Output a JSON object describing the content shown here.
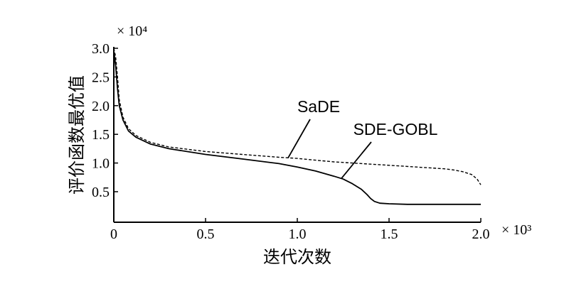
{
  "chart_data": {
    "type": "line",
    "xlabel": "迭代次数",
    "ylabel": "评价函数最优值",
    "x_multiplier": "× 10³",
    "y_multiplier": "× 10⁴",
    "xlim": [
      0,
      2.0
    ],
    "ylim": [
      0.15,
      3.0
    ],
    "x_ticks": [
      "0",
      "0.5",
      "1.0",
      "1.5",
      "2.0"
    ],
    "x_tick_values": [
      0,
      0.5,
      1.0,
      1.5,
      2.0
    ],
    "y_ticks": [
      "0.5",
      "1.0",
      "1.5",
      "2.0",
      "2.5",
      "3.0"
    ],
    "y_tick_values": [
      0.5,
      1.0,
      1.5,
      2.0,
      2.5,
      3.0
    ],
    "grid": false,
    "series": [
      {
        "name": "SaDE",
        "style": "dashed",
        "x": [
          0,
          0.01,
          0.02,
          0.03,
          0.05,
          0.08,
          0.12,
          0.2,
          0.3,
          0.5,
          0.7,
          0.9,
          1.0,
          1.1,
          1.2,
          1.3,
          1.4,
          1.5,
          1.6,
          1.7,
          1.8,
          1.85,
          1.9,
          1.95,
          1.98,
          2.0
        ],
        "y": [
          3.0,
          2.85,
          2.5,
          2.1,
          1.8,
          1.6,
          1.48,
          1.36,
          1.28,
          1.2,
          1.15,
          1.1,
          1.08,
          1.05,
          1.02,
          1.0,
          0.98,
          0.96,
          0.94,
          0.92,
          0.9,
          0.88,
          0.85,
          0.8,
          0.72,
          0.62
        ]
      },
      {
        "name": "SDE-GOBL",
        "style": "solid",
        "x": [
          0,
          0.01,
          0.02,
          0.03,
          0.05,
          0.08,
          0.12,
          0.2,
          0.3,
          0.5,
          0.7,
          0.9,
          1.0,
          1.1,
          1.2,
          1.25,
          1.3,
          1.35,
          1.38,
          1.4,
          1.42,
          1.45,
          1.5,
          1.6,
          1.8,
          2.0
        ],
        "y": [
          2.95,
          2.7,
          2.3,
          2.0,
          1.75,
          1.56,
          1.45,
          1.33,
          1.25,
          1.15,
          1.07,
          0.99,
          0.93,
          0.86,
          0.77,
          0.72,
          0.64,
          0.54,
          0.45,
          0.38,
          0.33,
          0.3,
          0.29,
          0.28,
          0.28,
          0.28
        ]
      }
    ],
    "annotations": [
      {
        "text": "SaDE",
        "series": "SaDE",
        "at_x": 0.95
      },
      {
        "text": "SDE-GOBL",
        "series": "SDE-GOBL",
        "at_x": 1.24
      }
    ]
  }
}
